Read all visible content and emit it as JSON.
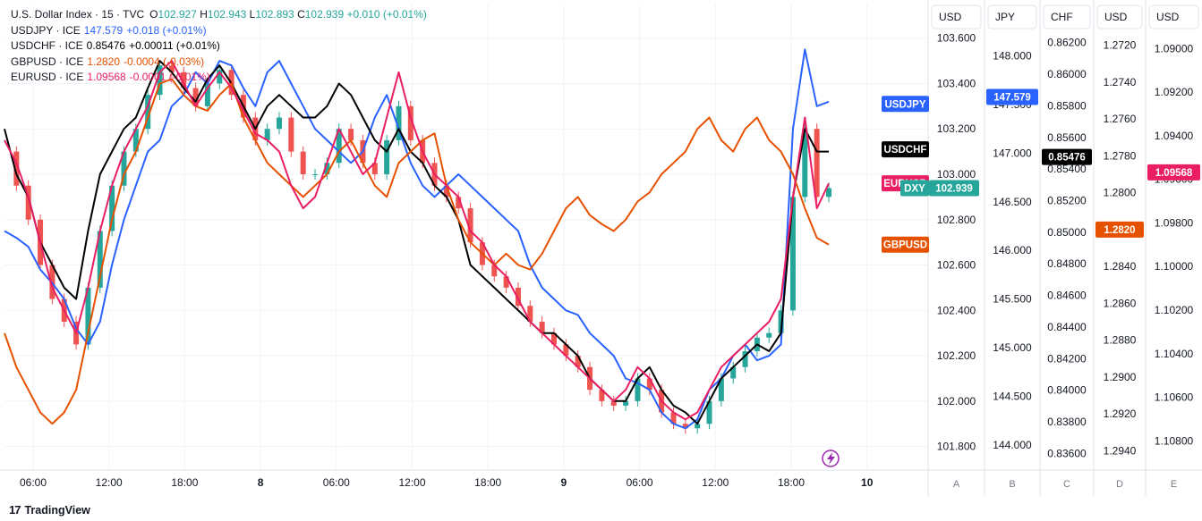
{
  "legend": [
    {
      "name": "U.S. Dollar Index · 15 · TVC",
      "o_label": "O",
      "o": "102.927",
      "h_label": "H",
      "h": "102.943",
      "l_label": "L",
      "l": "102.893",
      "c_label": "C",
      "c": "102.939",
      "chg": "+0.010 (+0.01%)",
      "color": "#26a69a"
    },
    {
      "name": "USDJPY · ICE",
      "value": "147.579",
      "chg": "+0.018 (+0.01%)",
      "color": "#2962ff"
    },
    {
      "name": "USDCHF · ICE",
      "value": "0.85476",
      "chg": "+0.00011 (+0.01%)",
      "color": "#000000"
    },
    {
      "name": "GBPUSD · ICE",
      "value": "1.2820",
      "chg": "-0.0004 (-0.03%)",
      "color": "#e65100"
    },
    {
      "name": "EURUSD · ICE",
      "value": "1.09568",
      "chg": "-0.0001 (-0.01%)",
      "color": "#e91e63"
    }
  ],
  "footer": {
    "brand": "TradingView",
    "logo": "17"
  },
  "chart_data": {
    "type": "line",
    "x_ticks": [
      "06:00",
      "12:00",
      "18:00",
      "8",
      "06:00",
      "12:00",
      "18:00",
      "9",
      "06:00",
      "12:00",
      "18:00",
      "10"
    ],
    "grid": true,
    "axes": [
      {
        "id": "A",
        "title": "USD",
        "ticks": [
          "103.600",
          "103.400",
          "103.200",
          "103.000",
          "102.800",
          "102.600",
          "102.400",
          "102.200",
          "102.000",
          "101.800"
        ],
        "range": [
          101.7,
          103.65
        ]
      },
      {
        "id": "B",
        "title": "JPY",
        "ticks": [
          "148.000",
          "147.500",
          "147.000",
          "146.500",
          "146.000",
          "145.500",
          "145.000",
          "144.500",
          "144.000"
        ],
        "range": [
          143.75,
          148.3
        ]
      },
      {
        "id": "C",
        "title": "CHF",
        "ticks": [
          "0.86200",
          "0.86000",
          "0.85800",
          "0.85600",
          "0.85400",
          "0.85200",
          "0.85000",
          "0.84800",
          "0.84600",
          "0.84400",
          "0.84200",
          "0.84000",
          "0.83800",
          "0.83600"
        ],
        "range": [
          0.835,
          0.863
        ]
      },
      {
        "id": "D",
        "title": "USD",
        "ticks": [
          "1.2720",
          "1.2740",
          "1.2760",
          "1.2780",
          "1.2800",
          "1.2820",
          "1.2840",
          "1.2860",
          "1.2880",
          "1.2900",
          "1.2920",
          "1.2940"
        ],
        "range": [
          1.271,
          1.295
        ],
        "inverted": true
      },
      {
        "id": "E",
        "title": "USD",
        "ticks": [
          "1.09000",
          "1.09200",
          "1.09400",
          "1.09600",
          "1.09800",
          "1.10000",
          "1.10200",
          "1.10400",
          "1.10600",
          "1.10800"
        ],
        "range": [
          1.089,
          1.1093
        ],
        "inverted": true
      }
    ],
    "price_labels": [
      {
        "text": "USDJPY",
        "color": "#2962ff",
        "axis": "A",
        "value": 103.31
      },
      {
        "text": "147.579",
        "color": "#2962ff",
        "axis": "B",
        "value": 147.579
      },
      {
        "text": "USDCHF",
        "color": "#000000",
        "axis": "A",
        "value": 103.11
      },
      {
        "text": "0.85476",
        "color": "#000000",
        "axis": "C",
        "value": 0.85476
      },
      {
        "text": "EURUSD",
        "color": "#e91e63",
        "axis": "A",
        "value": 102.96
      },
      {
        "text": "1.09568",
        "color": "#e91e63",
        "axis": "E",
        "value": 1.09568
      },
      {
        "text": "DXY",
        "color": "#26a69a",
        "axis": "A",
        "value": 102.939
      },
      {
        "text": "102.939",
        "color": "#26a69a",
        "axis": "A",
        "value": 102.939
      },
      {
        "text": "GBPUSD",
        "color": "#e65100",
        "axis": "A",
        "value": 102.69
      },
      {
        "text": "1.2820",
        "color": "#e65100",
        "axis": "D",
        "value": 1.282
      }
    ],
    "series": [
      {
        "name": "USDJPY",
        "color": "#2962ff",
        "axis": "A",
        "values": [
          102.75,
          102.72,
          102.68,
          102.58,
          102.52,
          102.45,
          102.32,
          102.25,
          102.35,
          102.6,
          102.8,
          102.95,
          103.1,
          103.15,
          103.3,
          103.35,
          103.45,
          103.4,
          103.5,
          103.48,
          103.38,
          103.3,
          103.45,
          103.5,
          103.4,
          103.3,
          103.2,
          103.15,
          103.1,
          103.05,
          103.1,
          103.25,
          103.35,
          103.2,
          103.05,
          102.95,
          102.9,
          102.95,
          103.0,
          102.95,
          102.9,
          102.85,
          102.8,
          102.75,
          102.6,
          102.5,
          102.45,
          102.4,
          102.38,
          102.3,
          102.25,
          102.2,
          102.1,
          102.08,
          102.05,
          101.95,
          101.9,
          101.88,
          101.92,
          102.05,
          102.1,
          102.2,
          102.25,
          102.18,
          102.2,
          102.25,
          103.2,
          103.55,
          103.3,
          103.32
        ]
      },
      {
        "name": "USDCHF",
        "color": "#000000",
        "axis": "A",
        "values": [
          103.2,
          103.0,
          102.9,
          102.7,
          102.6,
          102.5,
          102.45,
          102.75,
          103.0,
          103.1,
          103.2,
          103.25,
          103.38,
          103.5,
          103.45,
          103.38,
          103.32,
          103.42,
          103.48,
          103.4,
          103.3,
          103.2,
          103.3,
          103.35,
          103.3,
          103.25,
          103.25,
          103.3,
          103.4,
          103.35,
          103.25,
          103.15,
          103.1,
          103.2,
          103.1,
          103.05,
          102.95,
          102.9,
          102.8,
          102.6,
          102.55,
          102.5,
          102.45,
          102.4,
          102.35,
          102.3,
          102.3,
          102.25,
          102.2,
          102.1,
          102.05,
          102.0,
          102.0,
          102.1,
          102.15,
          102.05,
          101.98,
          101.95,
          101.9,
          102.0,
          102.1,
          102.15,
          102.2,
          102.25,
          102.22,
          102.3,
          102.9,
          103.2,
          103.1,
          103.1
        ]
      },
      {
        "name": "GBPUSD",
        "color": "#e65100",
        "axis": "A",
        "values": [
          102.3,
          102.15,
          102.05,
          101.95,
          101.9,
          101.95,
          102.05,
          102.3,
          102.55,
          102.8,
          103.0,
          103.1,
          103.25,
          103.4,
          103.42,
          103.35,
          103.3,
          103.28,
          103.35,
          103.4,
          103.25,
          103.15,
          103.05,
          103.0,
          102.95,
          102.9,
          102.95,
          103.0,
          103.1,
          103.15,
          103.05,
          102.95,
          102.9,
          103.05,
          103.1,
          103.15,
          103.18,
          102.95,
          102.8,
          102.7,
          102.65,
          102.6,
          102.65,
          102.6,
          102.58,
          102.65,
          102.75,
          102.85,
          102.9,
          102.82,
          102.78,
          102.75,
          102.8,
          102.88,
          102.92,
          103.0,
          103.05,
          103.1,
          103.2,
          103.25,
          103.15,
          103.1,
          103.2,
          103.25,
          103.15,
          103.1,
          103.0,
          102.85,
          102.72,
          102.69
        ]
      },
      {
        "name": "EURUSD",
        "color": "#e91e63",
        "axis": "A",
        "values": [
          103.15,
          103.05,
          102.9,
          102.7,
          102.5,
          102.4,
          102.3,
          102.5,
          102.75,
          102.95,
          103.1,
          103.2,
          103.3,
          103.45,
          103.5,
          103.4,
          103.3,
          103.38,
          103.45,
          103.38,
          103.28,
          103.18,
          103.15,
          103.1,
          102.95,
          102.85,
          102.9,
          103.05,
          103.2,
          103.1,
          103.0,
          103.05,
          103.25,
          103.45,
          103.25,
          103.1,
          103.0,
          102.95,
          102.9,
          102.75,
          102.7,
          102.6,
          102.55,
          102.45,
          102.35,
          102.3,
          102.25,
          102.2,
          102.15,
          102.1,
          102.05,
          102.0,
          102.05,
          102.15,
          102.1,
          102.0,
          101.95,
          101.92,
          101.95,
          102.05,
          102.15,
          102.2,
          102.25,
          102.3,
          102.35,
          102.45,
          102.9,
          103.25,
          102.85,
          102.96
        ]
      },
      {
        "name": "DXY",
        "color": "#26a69a",
        "axis": "A",
        "values": [
          103.1,
          102.95,
          102.8,
          102.6,
          102.45,
          102.35,
          102.25,
          102.5,
          102.75,
          102.95,
          103.1,
          103.2,
          103.35,
          103.48,
          103.45,
          103.38,
          103.3,
          103.4,
          103.46,
          103.35,
          103.25,
          103.15,
          103.2,
          103.25,
          103.1,
          103.0,
          103.0,
          103.05,
          103.2,
          103.15,
          103.05,
          103.0,
          103.15,
          103.3,
          103.15,
          103.05,
          102.95,
          102.9,
          102.85,
          102.7,
          102.6,
          102.55,
          102.5,
          102.42,
          102.35,
          102.3,
          102.25,
          102.2,
          102.15,
          102.05,
          102.0,
          101.98,
          102.0,
          102.1,
          102.05,
          101.95,
          101.9,
          101.88,
          101.9,
          102.0,
          102.1,
          102.15,
          102.22,
          102.28,
          102.3,
          102.4,
          102.9,
          103.2,
          102.9,
          102.939
        ]
      }
    ]
  }
}
